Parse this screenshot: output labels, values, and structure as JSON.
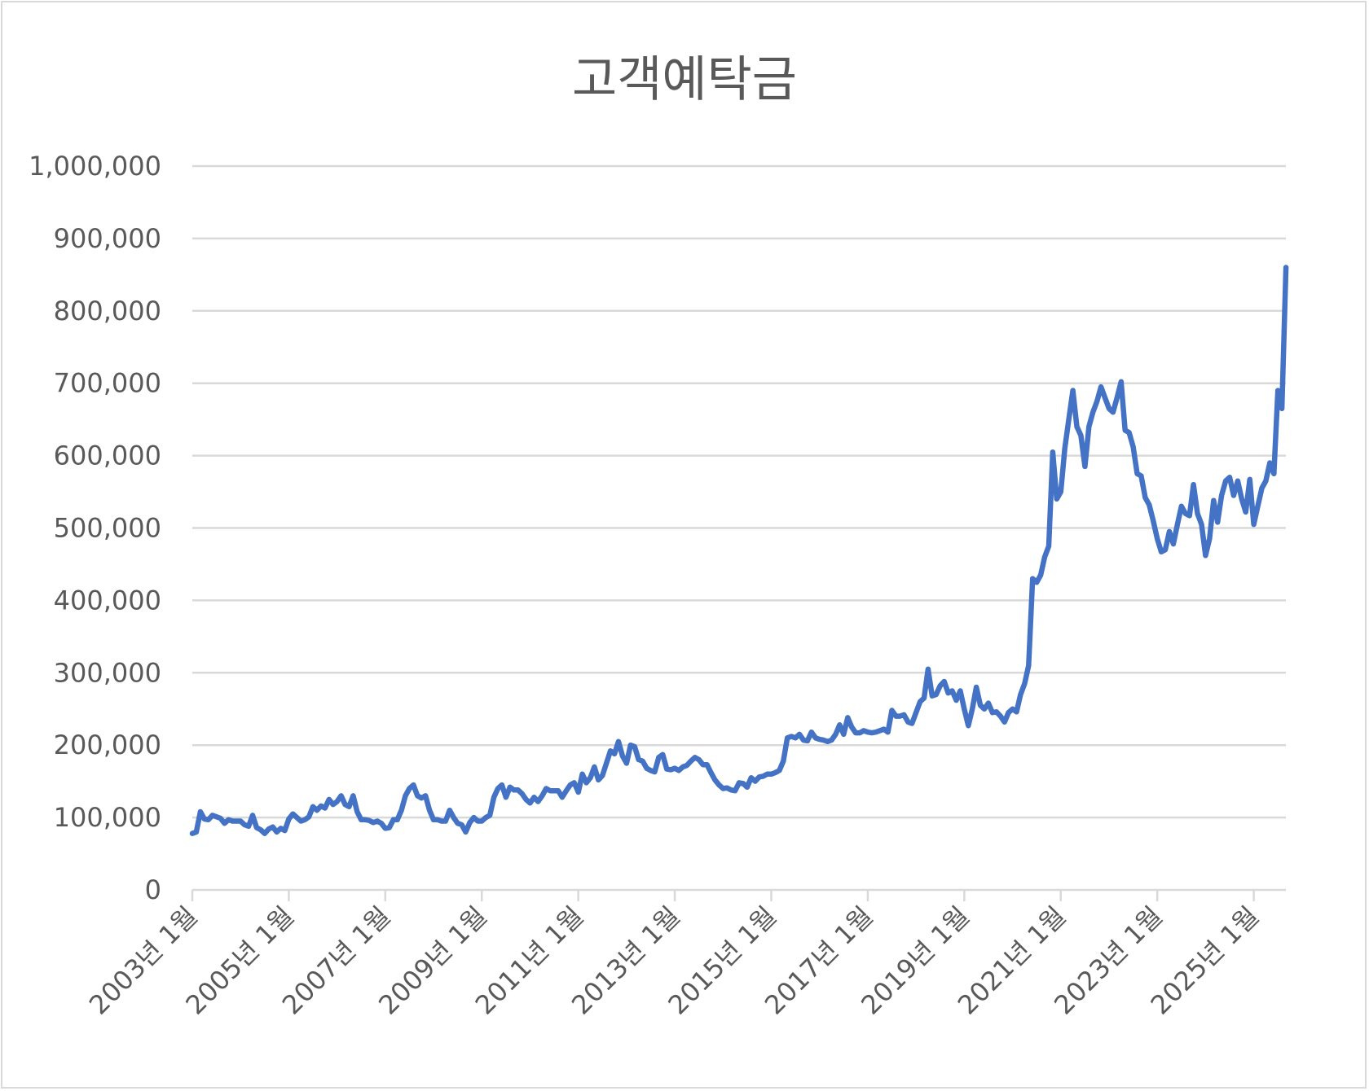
{
  "chart_data": {
    "type": "line",
    "title": "고객예탁금",
    "xlabel": "",
    "ylabel": "",
    "start_month": "2003-01",
    "end_month": "2025-09",
    "ylim": [
      0,
      1000000
    ],
    "y_ticks": [
      "0",
      "100,000",
      "200,000",
      "300,000",
      "400,000",
      "500,000",
      "600,000",
      "700,000",
      "800,000",
      "900,000",
      "1,000,000"
    ],
    "x_ticks": [
      "2003년 1월",
      "2005년 1월",
      "2007년 1월",
      "2009년 1월",
      "2011년 1월",
      "2013년 1월",
      "2015년 1월",
      "2017년 1월",
      "2019년 1월",
      "2021년 1월",
      "2023년 1월",
      "2025년 1월"
    ],
    "grid": true,
    "legend": "none",
    "series": [
      {
        "name": "고객예탁금",
        "color": "#4472C4",
        "values": [
          78000,
          80000,
          108000,
          98000,
          97000,
          103000,
          101000,
          99000,
          92000,
          97000,
          95000,
          95000,
          95000,
          90000,
          88000,
          103000,
          86000,
          83000,
          78000,
          84000,
          87000,
          80000,
          85000,
          82000,
          98000,
          105000,
          100000,
          95000,
          97000,
          101000,
          115000,
          110000,
          116000,
          113000,
          125000,
          118000,
          122000,
          130000,
          118000,
          115000,
          130000,
          108000,
          97000,
          97000,
          96000,
          93000,
          95000,
          92000,
          85000,
          86000,
          97000,
          97000,
          110000,
          130000,
          140000,
          145000,
          130000,
          127000,
          130000,
          110000,
          97000,
          97000,
          95000,
          95000,
          110000,
          100000,
          92000,
          90000,
          80000,
          93000,
          100000,
          95000,
          95000,
          100000,
          103000,
          128000,
          140000,
          145000,
          128000,
          142000,
          138000,
          138000,
          133000,
          125000,
          120000,
          128000,
          122000,
          130000,
          140000,
          137000,
          137000,
          137000,
          128000,
          137000,
          145000,
          148000,
          135000,
          160000,
          148000,
          155000,
          170000,
          152000,
          158000,
          175000,
          192000,
          188000,
          205000,
          185000,
          175000,
          200000,
          198000,
          180000,
          178000,
          168000,
          165000,
          163000,
          183000,
          187000,
          167000,
          166000,
          168000,
          165000,
          170000,
          172000,
          178000,
          183000,
          180000,
          173000,
          173000,
          162000,
          152000,
          145000,
          140000,
          141000,
          138000,
          137000,
          148000,
          147000,
          142000,
          155000,
          150000,
          156000,
          157000,
          160000,
          160000,
          162000,
          165000,
          178000,
          210000,
          212000,
          210000,
          215000,
          207000,
          206000,
          218000,
          210000,
          208000,
          207000,
          205000,
          207000,
          215000,
          228000,
          215000,
          238000,
          225000,
          217000,
          217000,
          220000,
          218000,
          217000,
          218000,
          220000,
          222000,
          218000,
          248000,
          240000,
          240000,
          242000,
          232000,
          230000,
          245000,
          260000,
          265000,
          305000,
          268000,
          270000,
          282000,
          288000,
          272000,
          275000,
          262000,
          275000,
          250000,
          227000,
          250000,
          280000,
          255000,
          250000,
          258000,
          245000,
          246000,
          240000,
          232000,
          245000,
          250000,
          246000,
          270000,
          285000,
          310000,
          430000,
          425000,
          435000,
          460000,
          475000,
          605000,
          540000,
          550000,
          610000,
          650000,
          690000,
          640000,
          628000,
          585000,
          640000,
          660000,
          675000,
          695000,
          680000,
          665000,
          660000,
          680000,
          702000,
          635000,
          632000,
          612000,
          575000,
          572000,
          542000,
          532000,
          510000,
          485000,
          467000,
          470000,
          495000,
          478000,
          505000,
          530000,
          520000,
          517000,
          560000,
          520000,
          505000,
          462000,
          485000,
          538000,
          508000,
          545000,
          565000,
          570000,
          545000,
          565000,
          540000,
          522000,
          567000,
          505000,
          530000,
          555000,
          565000,
          590000,
          575000,
          690000,
          665000,
          860000
        ]
      }
    ]
  }
}
